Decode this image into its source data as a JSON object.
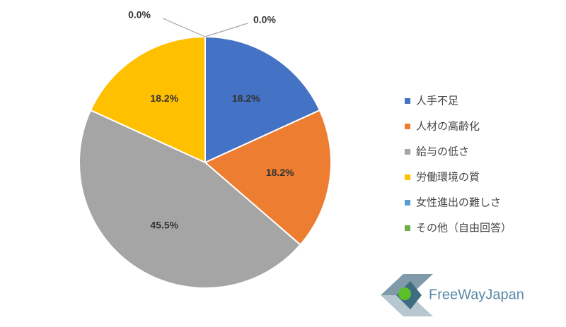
{
  "chart_data": {
    "type": "pie",
    "categories": [
      "人手不足",
      "人材の高齢化",
      "給与の低さ",
      "労働環境の質",
      "女性進出の難しさ",
      "その他（自由回答）"
    ],
    "values": [
      18.2,
      18.2,
      45.5,
      18.2,
      0.0,
      0.0
    ],
    "value_labels": [
      "18.2%",
      "18.2%",
      "45.5%",
      "18.2%",
      "0.0%",
      "0.0%"
    ],
    "colors": [
      "#4472c4",
      "#ed7d31",
      "#a5a5a5",
      "#ffc000",
      "#5b9bd5",
      "#70ad47"
    ],
    "legend": "right"
  },
  "logo": "FreeWayJapan"
}
